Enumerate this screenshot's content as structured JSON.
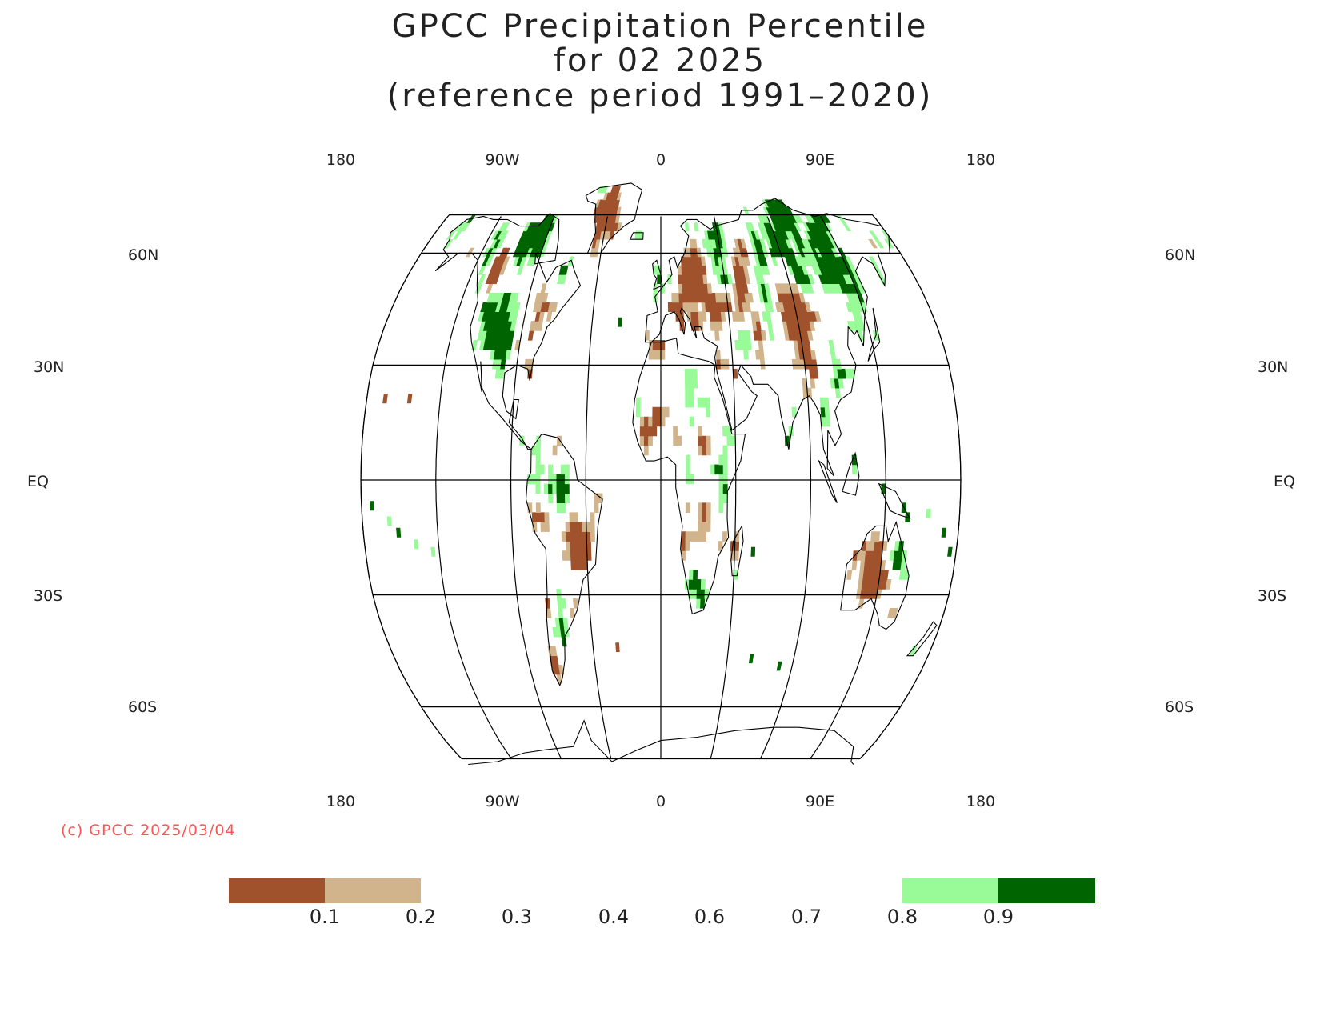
{
  "title": {
    "line1": "GPCC Precipitation Percentile",
    "line2": "for 02 2025",
    "line3": "(reference period 1991–2020)"
  },
  "map": {
    "projection": "Robinson",
    "central_meridian": 0,
    "longitude_labels": [
      "180",
      "90W",
      "0",
      "90E",
      "180"
    ],
    "latitude_labels": {
      "north": [
        "60N",
        "30N"
      ],
      "equator": "EQ",
      "south": [
        "30S",
        "60S"
      ]
    },
    "copyright": "(c) GPCC 2025/03/04",
    "colors": {
      "very_dry": "#a0522d",
      "dry": "#d2b48c",
      "wet": "#98fb98",
      "very_wet": "#006400",
      "grid": "#000000",
      "copyright": "#ff5555"
    }
  },
  "legend": {
    "tick_labels": [
      "0.1",
      "0.2",
      "0.3",
      "0.4",
      "0.6",
      "0.7",
      "0.8",
      "0.9"
    ],
    "classes": [
      {
        "range": "< 0.1",
        "color": "#a0522d"
      },
      {
        "range": "0.1–0.2",
        "color": "#d2b48c"
      },
      {
        "range": "0.2–0.8",
        "color": "#ffffff"
      },
      {
        "range": "0.8–0.9",
        "color": "#98fb98"
      },
      {
        "range": "> 0.9",
        "color": "#006400"
      }
    ]
  }
}
